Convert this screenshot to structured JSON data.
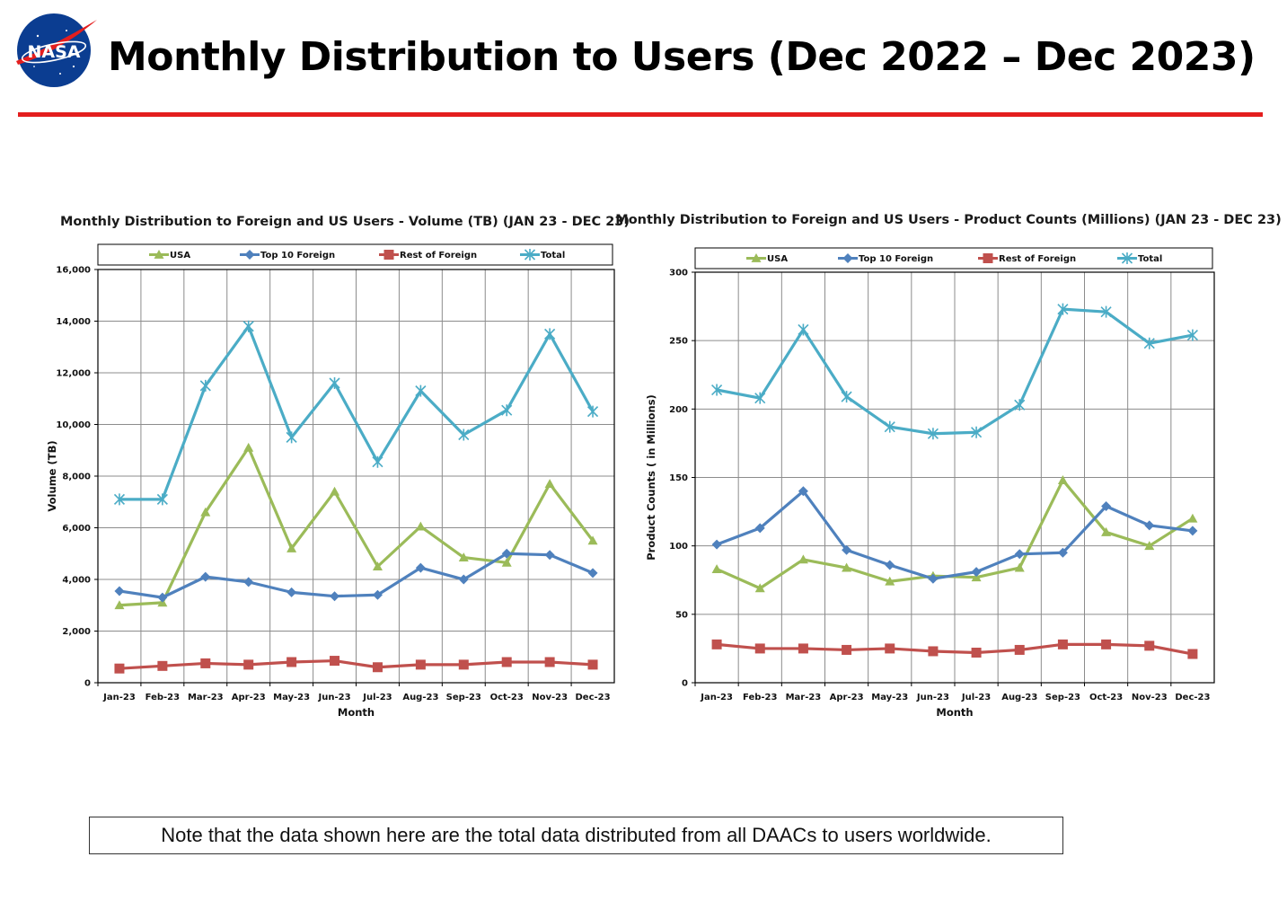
{
  "page": {
    "title": "Monthly Distribution to Users (Dec 2022 – Dec 2023)",
    "logo_text": "NASA",
    "accent_color": "#e41e1e",
    "note": "Note that the data shown here are the total data distributed from all DAACs to users worldwide."
  },
  "chart_data": [
    {
      "type": "line",
      "title": "Monthly Distribution to Foreign and US Users - Volume  (TB) (JAN 23 - DEC 23)",
      "xlabel": "Month",
      "ylabel": "Volume (TB)",
      "categories": [
        "Jan-23",
        "Feb-23",
        "Mar-23",
        "Apr-23",
        "May-23",
        "Jun-23",
        "Jul-23",
        "Aug-23",
        "Sep-23",
        "Oct-23",
        "Nov-23",
        "Dec-23"
      ],
      "ylim": [
        0,
        16000
      ],
      "yticks": [
        0,
        2000,
        4000,
        6000,
        8000,
        10000,
        12000,
        14000,
        16000
      ],
      "ytick_labels": [
        "0",
        "2,000",
        "4,000",
        "6,000",
        "8,000",
        "10,000",
        "12,000",
        "14,000",
        "16,000"
      ],
      "grid": true,
      "legend_position": "top",
      "series": [
        {
          "name": "USA",
          "color": "#9bbb59",
          "marker": "triangle",
          "values": [
            3000,
            3100,
            6600,
            9100,
            5200,
            7400,
            4500,
            6050,
            4850,
            4650,
            7700,
            5500
          ]
        },
        {
          "name": "Top  10 Foreign",
          "color": "#4f81bd",
          "marker": "diamond",
          "values": [
            3550,
            3300,
            4100,
            3900,
            3500,
            3350,
            3400,
            4450,
            4000,
            5000,
            4950,
            4250
          ]
        },
        {
          "name": "Rest of Foreign",
          "color": "#c0504d",
          "marker": "square",
          "values": [
            550,
            650,
            750,
            700,
            800,
            850,
            600,
            700,
            700,
            800,
            800,
            700
          ]
        },
        {
          "name": "Total",
          "color": "#4bacc6",
          "marker": "star",
          "values": [
            7100,
            7100,
            11500,
            13800,
            9500,
            11600,
            8550,
            11300,
            9600,
            10550,
            13500,
            10500
          ]
        }
      ]
    },
    {
      "type": "line",
      "title": "Monthly Distribution to Foreign and US Users - Product Counts (Millions) (JAN 23 - DEC 23)",
      "xlabel": "Month",
      "ylabel": "Product Counts ( in Millions)",
      "categories": [
        "Jan-23",
        "Feb-23",
        "Mar-23",
        "Apr-23",
        "May-23",
        "Jun-23",
        "Jul-23",
        "Aug-23",
        "Sep-23",
        "Oct-23",
        "Nov-23",
        "Dec-23"
      ],
      "ylim": [
        0,
        300
      ],
      "yticks": [
        0,
        50,
        100,
        150,
        200,
        250,
        300
      ],
      "ytick_labels": [
        "0",
        "50",
        "100",
        "150",
        "200",
        "250",
        "300"
      ],
      "grid": true,
      "legend_position": "top",
      "series": [
        {
          "name": "USA",
          "color": "#9bbb59",
          "marker": "triangle",
          "values": [
            83,
            69,
            90,
            84,
            74,
            78,
            77,
            84,
            148,
            110,
            100,
            120
          ]
        },
        {
          "name": "Top  10 Foreign",
          "color": "#4f81bd",
          "marker": "diamond",
          "values": [
            101,
            113,
            140,
            97,
            86,
            76,
            81,
            94,
            95,
            129,
            115,
            111
          ]
        },
        {
          "name": "Rest of Foreign",
          "color": "#c0504d",
          "marker": "square",
          "values": [
            28,
            25,
            25,
            24,
            25,
            23,
            22,
            24,
            28,
            28,
            27,
            21
          ]
        },
        {
          "name": "Total",
          "color": "#4bacc6",
          "marker": "star",
          "values": [
            214,
            208,
            258,
            209,
            187,
            182,
            183,
            203,
            273,
            271,
            248,
            254
          ]
        }
      ]
    }
  ]
}
